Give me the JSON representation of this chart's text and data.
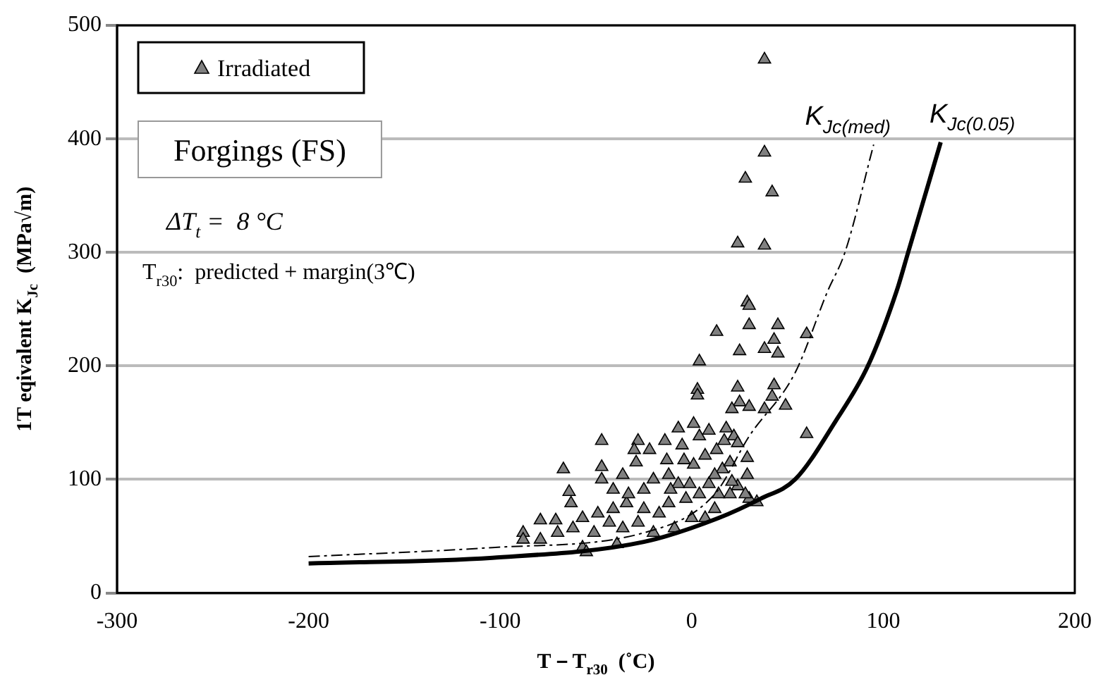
{
  "chart_data": {
    "type": "scatter",
    "xlabel": "T－T$_{r30}$  (˚C)",
    "ylabel": "1T eqivalent K$_{Jc}$  (MPa√m)",
    "xlim": [
      -300,
      200
    ],
    "xticks": [
      -300,
      -200,
      -100,
      0,
      100,
      200
    ],
    "ylim": [
      0,
      500
    ],
    "yticks": [
      0,
      100,
      200,
      300,
      400,
      500
    ],
    "grid": "y",
    "legend": "top left",
    "marker": "triangle",
    "annotations": [
      "Forgings (FS)",
      "ΔT$_{t}$ =  8 °C",
      "T$_{r30}$:  predicted + margin(3℃)"
    ],
    "series": [
      {
        "type": "line",
        "name": "K$_{Jc(med)}$",
        "color": "#000000",
        "line_style": "dashed",
        "marker": "none",
        "x": [
          -200,
          -104,
          -25,
          12,
          30,
          54,
          71,
          80,
          95
        ],
        "values": [
          32,
          40,
          53,
          87,
          138,
          194,
          266,
          300,
          395
        ]
      },
      {
        "type": "line",
        "name": "K$_{Jc(0.05)}$",
        "color": "#000000",
        "line_style": "solid",
        "marker": "none",
        "x": [
          -200,
          -104,
          -25,
          14,
          36,
          54,
          75,
          92,
          107,
          113,
          130
        ],
        "values": [
          26,
          31,
          45,
          66,
          83,
          100,
          151,
          200,
          266,
          300,
          397
        ]
      },
      {
        "name": "Irradiated",
        "color": "#808080",
        "x": [
          38,
          38,
          28,
          42,
          24,
          38,
          29,
          30,
          13,
          30,
          45,
          60,
          25,
          38,
          43,
          45,
          4,
          24,
          43,
          3,
          3,
          25,
          42,
          21,
          30,
          38,
          49,
          60,
          -47,
          -28,
          -7,
          1,
          9,
          18,
          22,
          24,
          -67,
          -47,
          29,
          29,
          24,
          30,
          34,
          -88,
          -88,
          -79,
          -79,
          -71,
          -64,
          -63,
          -57,
          -57,
          -55,
          -49,
          -47,
          -41,
          -39,
          -36,
          -34,
          -30,
          -29,
          -28,
          -25,
          -20,
          -22,
          -14,
          -13,
          -12,
          -9,
          -7,
          -5,
          -3,
          0,
          1,
          4,
          7,
          9,
          12,
          13,
          16,
          17,
          20,
          20,
          21,
          28,
          -70,
          -62,
          -51,
          -43,
          -41,
          -36,
          -33,
          -25,
          -20,
          -17,
          -12,
          -11,
          -4,
          -1,
          4,
          7,
          12,
          14
        ],
        "values": [
          470,
          388,
          365,
          353,
          308,
          306,
          256,
          253,
          230,
          236,
          236,
          228,
          213,
          215,
          223,
          211,
          204,
          181,
          183,
          179,
          174,
          168,
          173,
          162,
          164,
          162,
          165,
          140,
          134,
          134,
          145,
          149,
          143,
          145,
          138,
          132,
          109,
          111,
          119,
          104,
          94,
          83,
          80,
          53,
          47,
          64,
          47,
          64,
          89,
          79,
          66,
          40,
          36,
          70,
          100,
          91,
          43,
          104,
          79,
          126,
          115,
          62,
          91,
          53,
          126,
          134,
          117,
          79,
          57,
          96,
          130,
          83,
          66,
          113,
          138,
          66,
          96,
          74,
          126,
          109,
          134,
          87,
          115,
          98,
          87,
          53,
          57,
          53,
          62,
          74,
          57,
          87,
          74,
          100,
          70,
          104,
          91,
          117,
          96,
          87,
          121,
          104,
          87
        ]
      }
    ]
  }
}
